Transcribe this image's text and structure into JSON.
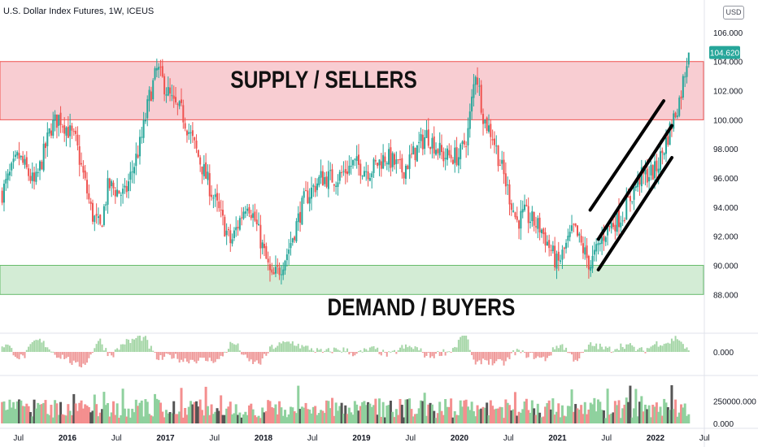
{
  "header": {
    "title": "U.S. Dollar Index Futures, 1W, ICEUS",
    "currency": "USD"
  },
  "price_badge": "104.620",
  "colors": {
    "up": "#26a69a",
    "down": "#ef5350",
    "supply_fill": "#f8cdd2",
    "supply_line": "#ef5350",
    "demand_fill": "#d3ecd5",
    "demand_line": "#66bb6a",
    "badge": "#26a69a"
  },
  "chart_data": [
    {
      "type": "candlestick",
      "title": "U.S. Dollar Index Futures, 1W, ICEUS",
      "ylim": [
        86.9,
        107.0
      ],
      "y_ticks": [
        "106.000",
        "104.000",
        "102.000",
        "100.000",
        "98.000",
        "96.000",
        "94.000",
        "92.000",
        "90.000",
        "88.000"
      ],
      "x_ticks": [
        "Jul",
        "2016",
        "Jul",
        "2017",
        "Jul",
        "2018",
        "Jul",
        "2019",
        "Jul",
        "2020",
        "Jul",
        "2021",
        "Jul",
        "2022",
        "Jul"
      ],
      "last_price": 104.62,
      "zones": [
        {
          "name": "SUPPLY / SELLERS",
          "from": 100.0,
          "to": 104.0,
          "color": "red"
        },
        {
          "name": "DEMAND / BUYERS",
          "from": 88.0,
          "to": 90.0,
          "color": "green"
        }
      ],
      "channel_lines": [
        {
          "from": [
            "2021-05",
            93.8
          ],
          "to": [
            "2022-02",
            101.3
          ]
        },
        {
          "from": [
            "2021-06",
            91.8
          ],
          "to": [
            "2022-03",
            99.6
          ]
        },
        {
          "from": [
            "2021-06",
            89.7
          ],
          "to": [
            "2022-03",
            97.4
          ]
        }
      ],
      "price_path": [
        [
          "2015-05",
          95.0
        ],
        [
          "2015-07",
          97.5
        ],
        [
          "2015-09",
          95.5
        ],
        [
          "2015-11",
          99.5
        ],
        [
          "2015-12",
          100.2
        ],
        [
          "2016-02",
          98.5
        ],
        [
          "2016-04",
          93.5
        ],
        [
          "2016-05",
          92.5
        ],
        [
          "2016-06",
          95.5
        ],
        [
          "2016-08",
          94.8
        ],
        [
          "2016-10",
          98.5
        ],
        [
          "2016-11",
          101.5
        ],
        [
          "2016-12",
          103.5
        ],
        [
          "2017-01",
          102.2
        ],
        [
          "2017-02",
          101.0
        ],
        [
          "2017-03",
          100.5
        ],
        [
          "2017-05",
          97.5
        ],
        [
          "2017-07",
          94.5
        ],
        [
          "2017-09",
          91.5
        ],
        [
          "2017-11",
          94.5
        ],
        [
          "2017-12",
          93.0
        ],
        [
          "2018-02",
          89.0
        ],
        [
          "2018-03",
          89.8
        ],
        [
          "2018-04",
          91.0
        ],
        [
          "2018-06",
          94.5
        ],
        [
          "2018-08",
          96.0
        ],
        [
          "2018-10",
          96.0
        ],
        [
          "2018-12",
          97.0
        ],
        [
          "2019-02",
          96.5
        ],
        [
          "2019-04",
          97.5
        ],
        [
          "2019-06",
          96.5
        ],
        [
          "2019-09",
          99.0
        ],
        [
          "2019-11",
          97.5
        ],
        [
          "2020-01",
          97.5
        ],
        [
          "2020-02",
          99.0
        ],
        [
          "2020-03",
          103.5
        ],
        [
          "2020-04",
          100.0
        ],
        [
          "2020-05",
          99.0
        ],
        [
          "2020-06",
          97.0
        ],
        [
          "2020-08",
          93.0
        ],
        [
          "2020-09",
          93.5
        ],
        [
          "2020-11",
          92.5
        ],
        [
          "2021-01",
          90.0
        ],
        [
          "2021-03",
          92.5
        ],
        [
          "2021-05",
          90.0
        ],
        [
          "2021-07",
          92.5
        ],
        [
          "2021-09",
          93.5
        ],
        [
          "2021-11",
          96.0
        ],
        [
          "2022-01",
          96.5
        ],
        [
          "2022-02",
          98.0
        ],
        [
          "2022-04",
          101.5
        ],
        [
          "2022-05",
          104.62
        ]
      ]
    },
    {
      "type": "bar",
      "title": "oscillator",
      "y_ticks": [
        "0.000"
      ],
      "note": "histogram pane, green above zero / red below"
    },
    {
      "type": "bar",
      "title": "volume",
      "y_ticks": [
        "250000.000",
        "0.000"
      ],
      "ylim": [
        0,
        480000
      ]
    }
  ]
}
